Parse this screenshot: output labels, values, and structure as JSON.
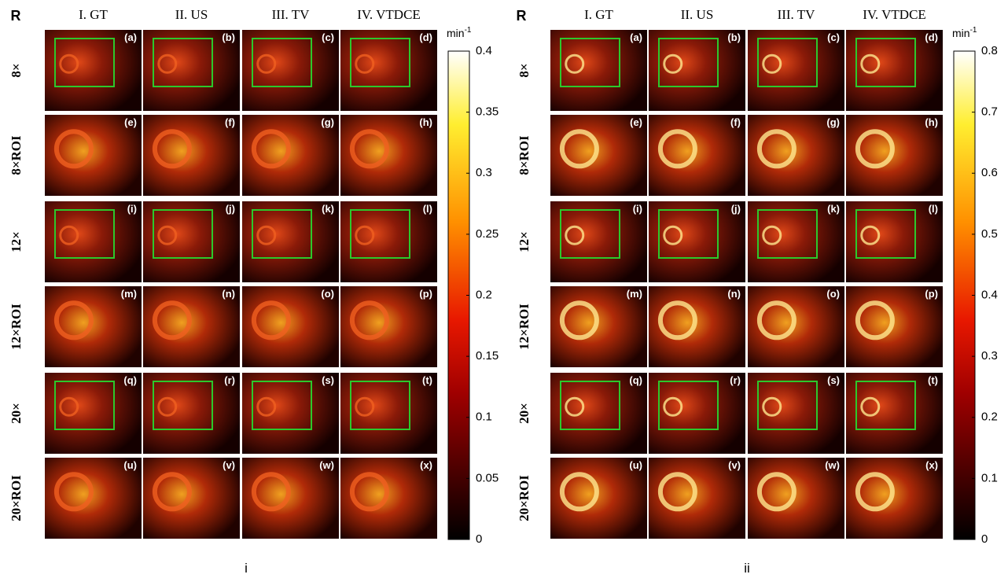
{
  "panels": [
    {
      "caption": "i",
      "corner_label": "R",
      "column_headers": [
        "I. GT",
        "II. US",
        "III. TV",
        "IV. VTDCE"
      ],
      "row_labels": [
        "8×",
        "8×ROI",
        "12×",
        "12×ROI",
        "20×",
        "20×ROI"
      ],
      "image_labels": [
        "(a)",
        "(b)",
        "(c)",
        "(d)",
        "(e)",
        "(f)",
        "(g)",
        "(h)",
        "(i)",
        "(j)",
        "(k)",
        "(l)",
        "(m)",
        "(n)",
        "(o)",
        "(p)",
        "(q)",
        "(r)",
        "(s)",
        "(t)",
        "(u)",
        "(v)",
        "(w)",
        "(x)"
      ],
      "colorbar": {
        "unit": "min",
        "unit_exponent": "-1",
        "lim": [
          0,
          0.4
        ],
        "ticks": [
          0,
          0.05,
          0.1,
          0.15,
          0.2,
          0.25,
          0.3,
          0.35,
          0.4
        ]
      }
    },
    {
      "caption": "ii",
      "corner_label": "R",
      "column_headers": [
        "I. GT",
        "II. US",
        "III. TV",
        "IV. VTDCE"
      ],
      "row_labels": [
        "8×",
        "8×ROI",
        "12×",
        "12×ROI",
        "20×",
        "20×ROI"
      ],
      "image_labels": [
        "(a)",
        "(b)",
        "(c)",
        "(d)",
        "(e)",
        "(f)",
        "(g)",
        "(h)",
        "(i)",
        "(j)",
        "(k)",
        "(l)",
        "(m)",
        "(n)",
        "(o)",
        "(p)",
        "(q)",
        "(r)",
        "(s)",
        "(t)",
        "(u)",
        "(v)",
        "(w)",
        "(x)"
      ],
      "colorbar": {
        "unit": "min",
        "unit_exponent": "-1",
        "lim": [
          0,
          0.8
        ],
        "ticks": [
          0,
          0.1,
          0.2,
          0.3,
          0.4,
          0.5,
          0.6,
          0.7,
          0.8
        ]
      }
    }
  ]
}
